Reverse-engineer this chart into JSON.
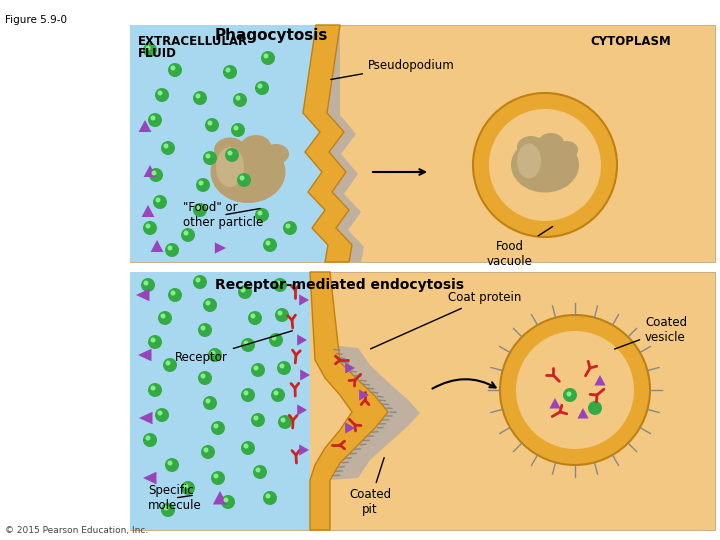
{
  "fig_label": "Figure 5.9-0",
  "panel1_title": "Phagocytosis",
  "panel2_title": "Receptor-mediated endocytosis",
  "panel1_labels": {
    "extracellular_fluid": "EXTRACELLULAR\nFLUID",
    "cytoplasm": "CYTOPLASM",
    "pseudopodium": "Pseudopodium",
    "food_particle": "“Food” or\nother particle",
    "food_vacuole": "Food\nvacuole"
  },
  "panel2_labels": {
    "receptor": "Receptor",
    "coat_protein": "Coat protein",
    "coated_vesicle": "Coated\nvesicle",
    "coated_pit": "Coated\npit",
    "specific_molecule": "Specific\nmolecule"
  },
  "copyright": "© 2015 Pearson Education, Inc.",
  "colors": {
    "background": "#ffffff",
    "panel1_bg": "#f5deb3",
    "panel2_bg": "#f5deb3",
    "blue_fluid": "#add8e6",
    "cell_membrane_fill": "#e8a830",
    "cell_membrane_stroke": "#c8880a",
    "gray_inner": "#b0a090",
    "food_particle": "#b8a070",
    "green_dot": "#44aa44",
    "purple_triangle": "#aa44aa",
    "red_receptor": "#cc2222",
    "arrow_color": "#000000",
    "text_color": "#000000"
  }
}
